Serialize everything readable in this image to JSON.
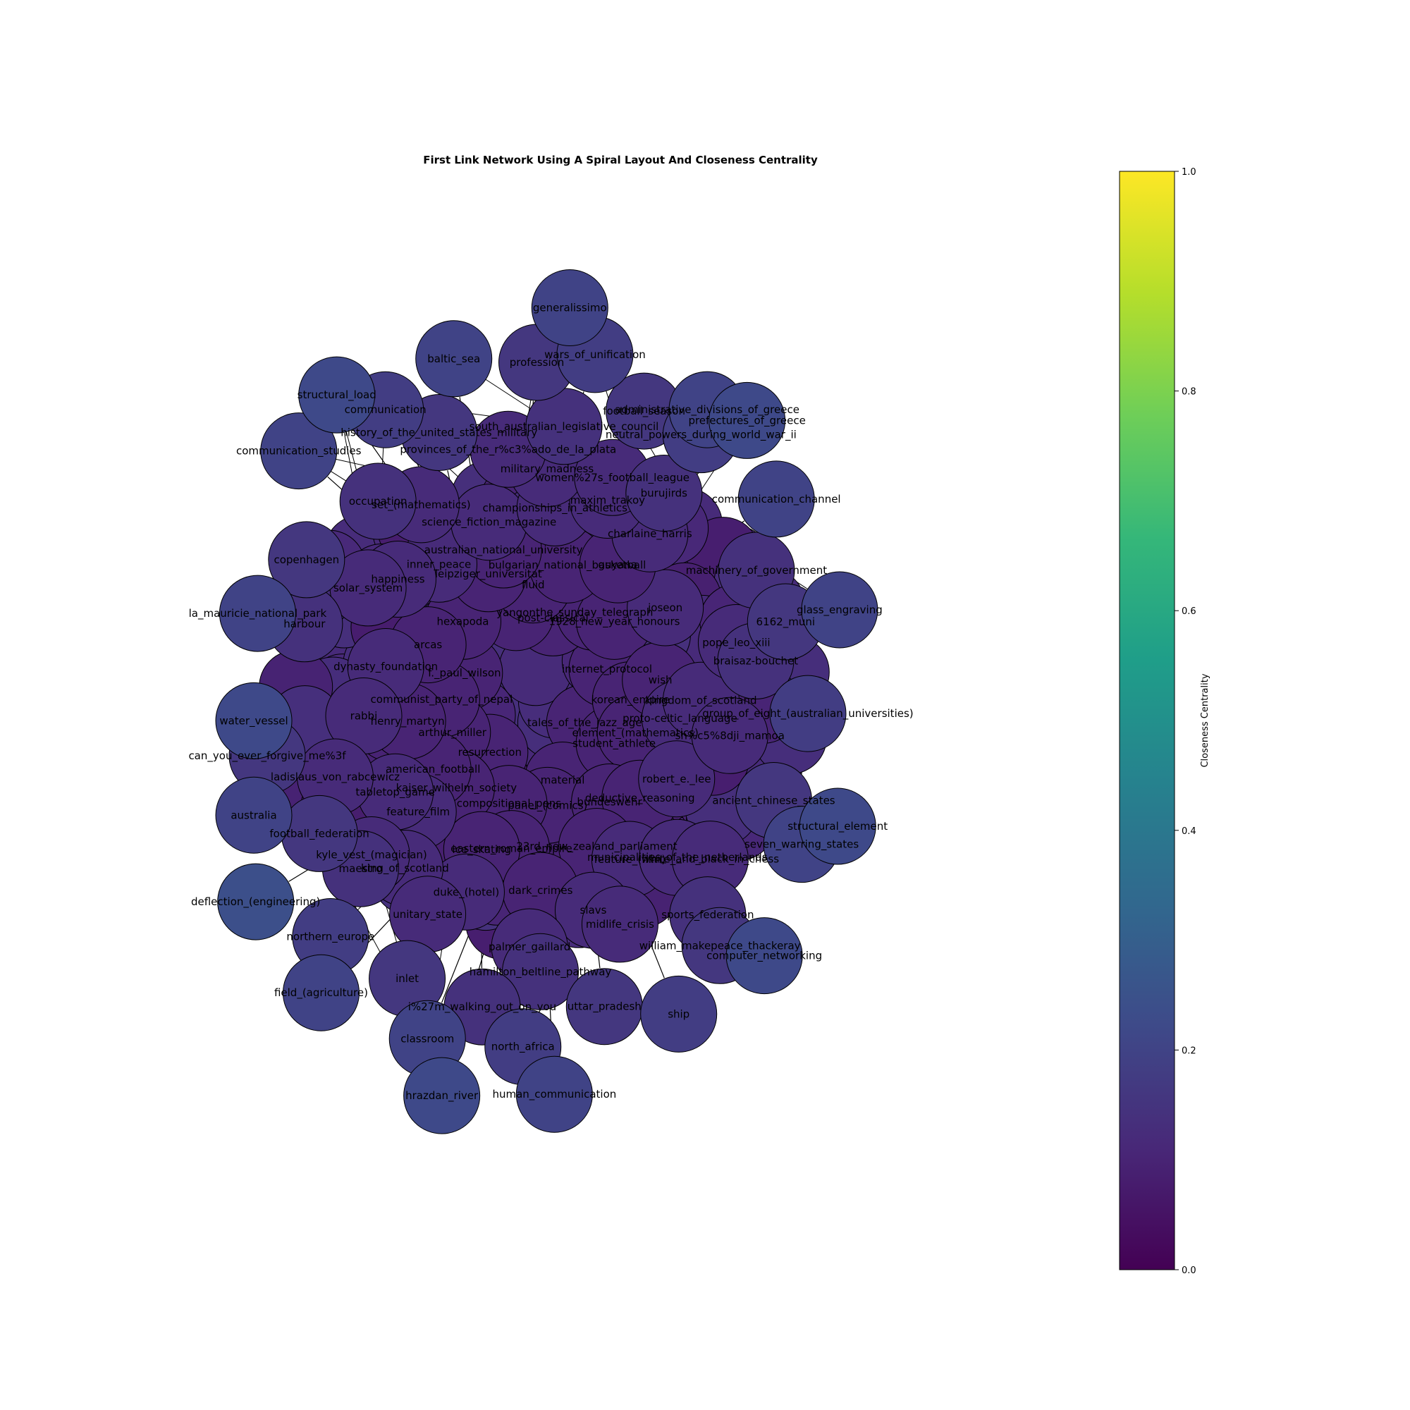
{
  "title": "First Link Network Using A Spiral Layout And Closeness Centrality",
  "colorbar": {
    "label": "Closeness Centrality",
    "ticks": [
      "0.0",
      "0.2",
      "0.4",
      "0.6",
      "0.8",
      "1.0"
    ],
    "range": [
      0,
      1
    ],
    "colormap": "viridis",
    "stops": [
      "#440154",
      "#482878",
      "#3e4a89",
      "#31688e",
      "#26828e",
      "#1f9e89",
      "#35b779",
      "#6ece58",
      "#b5de2b",
      "#fde725"
    ]
  },
  "node_style": {
    "edge_color": "#000000"
  },
  "nodes": [
    {
      "name": "deflection_(engineering)",
      "c": 0.24
    },
    {
      "name": "la_mauricie_national_park",
      "c": 0.2
    },
    {
      "name": "computer_networking",
      "c": 0.22
    },
    {
      "name": "neutral_powers_during_world_war_ii",
      "c": 0.18
    },
    {
      "name": "inner_peace",
      "c": 0.12
    },
    {
      "name": "tales_of_the_jazz_age",
      "c": 0.1
    },
    {
      "name": "communication_channel",
      "c": 0.2
    },
    {
      "name": "history_of_the_united_states_military",
      "c": 0.16
    },
    {
      "name": "proto-celtic_language",
      "c": 0.12
    },
    {
      "name": "resurrection",
      "c": 0.1
    },
    {
      "name": "feature_film",
      "c": 0.12
    },
    {
      "name": "post-classical",
      "c": 0.1
    },
    {
      "name": "material",
      "c": 0.1
    },
    {
      "name": "water_vessel",
      "c": 0.22
    },
    {
      "name": "prefectures_of_greece",
      "c": 0.22
    },
    {
      "name": "f._paul_wilson",
      "c": 0.1
    },
    {
      "name": "internet_protocol",
      "c": 0.1
    },
    {
      "name": "compositional_pens",
      "c": 0.1
    },
    {
      "name": "championships_in_athletics",
      "c": 0.12
    },
    {
      "name": "hrazdan_river",
      "c": 0.22
    },
    {
      "name": "yangon",
      "c": 0.1
    },
    {
      "name": "student_athlete",
      "c": 0.1
    },
    {
      "name": "ancient_chinese_states",
      "c": 0.16
    },
    {
      "name": "classroom",
      "c": 0.2
    },
    {
      "name": "north_africa",
      "c": 0.18
    },
    {
      "name": "arthur_miller",
      "c": 0.1
    },
    {
      "name": "the_sunday_telegraph",
      "c": 0.1
    },
    {
      "name": "feature_(film)",
      "c": 0.12
    },
    {
      "name": "panel_(comics)",
      "c": 0.1
    },
    {
      "name": "hexapoda",
      "c": 0.1
    },
    {
      "name": "dynasty_foundation",
      "c": 0.12
    },
    {
      "name": "joseon",
      "c": 0.12
    },
    {
      "name": "baltic_sea",
      "c": 0.2
    },
    {
      "name": "korean_empire",
      "c": 0.1
    },
    {
      "name": "kaiser_wilhelm_society",
      "c": 0.1
    },
    {
      "name": "fluid",
      "c": 0.1
    },
    {
      "name": "bundeswehr",
      "c": 0.1
    },
    {
      "name": "duke_(hotel)",
      "c": 0.12
    },
    {
      "name": "burujirds",
      "c": 0.14
    },
    {
      "name": "communist_party_of_nepal",
      "c": 0.1
    },
    {
      "name": "hamilton_beltline_pathway",
      "c": 0.14
    },
    {
      "name": "football_federation",
      "c": 0.16
    },
    {
      "name": "communication",
      "c": 0.18
    },
    {
      "name": "seven_warring_states",
      "c": 0.2
    },
    {
      "name": "1928_new_year_honours",
      "c": 0.1
    },
    {
      "name": "science_fiction_magazine",
      "c": 0.12
    },
    {
      "name": "football_season",
      "c": 0.16
    },
    {
      "name": "robert_e._lee",
      "c": 0.12
    },
    {
      "name": "tabletop_game",
      "c": 0.12
    },
    {
      "name": "maxim_trakoy",
      "c": 0.12
    },
    {
      "name": "slavs",
      "c": 0.12
    },
    {
      "name": "occupation",
      "c": 0.14
    },
    {
      "name": "braisaz-bouchet",
      "c": 0.14
    },
    {
      "name": "maestro",
      "c": 0.14
    },
    {
      "name": "uttar_pradesh",
      "c": 0.16
    },
    {
      "name": "eastern_roman_empire",
      "c": 0.1
    },
    {
      "name": "happiness",
      "c": 0.12
    },
    {
      "name": "kingdom_of_scotland",
      "c": 0.12
    },
    {
      "name": "king_of_scotland",
      "c": 0.12
    },
    {
      "name": "copenhagen",
      "c": 0.16
    },
    {
      "name": "6162_muni",
      "c": 0.16
    },
    {
      "name": "inlet",
      "c": 0.16
    },
    {
      "name": "profession",
      "c": 0.16
    },
    {
      "name": "military_madness",
      "c": 0.12
    },
    {
      "name": "south_australian_legislative_council",
      "c": 0.14
    },
    {
      "name": "sports_federation",
      "c": 0.14
    },
    {
      "name": "leipziger_universitat",
      "c": 0.1
    },
    {
      "name": "element_(mathematics)",
      "c": 0.1
    },
    {
      "name": "american_football",
      "c": 0.1
    },
    {
      "name": "group_of_eight_(australian_universities)",
      "c": 0.18
    },
    {
      "name": "australia",
      "c": 0.2
    },
    {
      "name": "structural_load",
      "c": 0.22
    },
    {
      "name": "administrative_divisions_of_greece",
      "c": 0.2
    },
    {
      "name": "william_makepeace_thackeray",
      "c": 0.16
    },
    {
      "name": "municipalities_of_the_netherlands",
      "c": 0.12
    },
    {
      "name": "rabbi",
      "c": 0.12
    },
    {
      "name": "charlaine_harris",
      "c": 0.12
    },
    {
      "name": "northern_europe",
      "c": 0.18
    },
    {
      "name": "palmer_gaillard",
      "c": 0.12
    },
    {
      "name": "bulgarian_national_basketball",
      "c": 0.1
    },
    {
      "name": "set_(mathematics)",
      "c": 0.12
    },
    {
      "name": "harbour",
      "c": 0.14
    },
    {
      "name": "wars_of_unification",
      "c": 0.18
    },
    {
      "name": "human_communication",
      "c": 0.2
    },
    {
      "name": "23rd_new_zealand_parliament",
      "c": 0.1
    },
    {
      "name": "arcas",
      "c": 0.1
    },
    {
      "name": "sh%c5%8dji_mamoa",
      "c": 0.12
    },
    {
      "name": "kyle_vest_(magician)",
      "c": 0.12
    },
    {
      "name": "women%27s_football_league",
      "c": 0.12
    },
    {
      "name": "midlife_crisis",
      "c": 0.12
    },
    {
      "name": "solar_system",
      "c": 0.12
    },
    {
      "name": "wish",
      "c": 0.1
    },
    {
      "name": "ice_skating",
      "c": 0.1
    },
    {
      "name": "australian_national_university",
      "c": 0.1
    },
    {
      "name": "pope_leo_xiii",
      "c": 0.12
    },
    {
      "name": "machinery_of_government",
      "c": 0.14
    },
    {
      "name": "communication_studies",
      "c": 0.2
    },
    {
      "name": "deductive_reasoning",
      "c": 0.1
    },
    {
      "name": "henry_martyn",
      "c": 0.1
    },
    {
      "name": "guyana",
      "c": 0.1
    },
    {
      "name": "dark_crimes",
      "c": 0.1
    },
    {
      "name": "i%27m_walking_out_on_you",
      "c": 0.14
    },
    {
      "name": "can_you_ever_forgive_me%3f",
      "c": 0.16
    },
    {
      "name": "unitary_state",
      "c": 0.12
    },
    {
      "name": "provinces_of_the_r%c3%ado_de_la_plata",
      "c": 0.12
    },
    {
      "name": "white_and_black_in_chess",
      "c": 0.12
    },
    {
      "name": "ladislaus_von_rabcewicz",
      "c": 0.12
    },
    {
      "name": "ship",
      "c": 0.18
    },
    {
      "name": "glass_engraving",
      "c": 0.2
    },
    {
      "name": "field_(agriculture)",
      "c": 0.2
    },
    {
      "name": "generalissimo",
      "c": 0.2
    },
    {
      "name": "structural_element",
      "c": 0.22
    }
  ]
}
